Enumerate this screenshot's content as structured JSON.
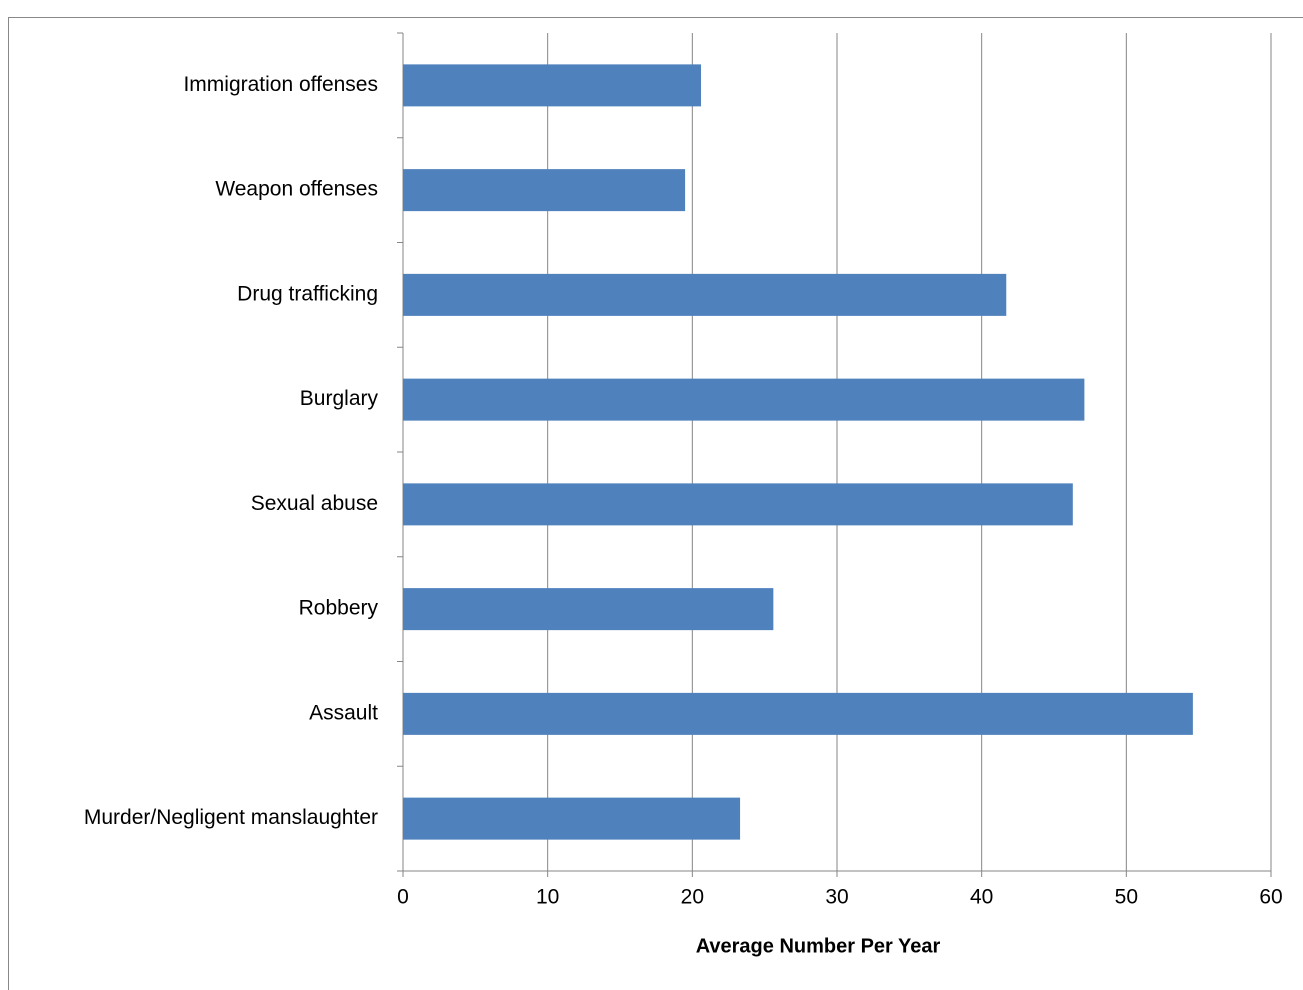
{
  "chart_data": {
    "type": "bar",
    "orientation": "horizontal",
    "x_label": "Average Number Per Year",
    "categories": [
      "Immigration offenses",
      "Weapon offenses",
      "Drug trafficking",
      "Burglary",
      "Sexual abuse",
      "Robbery",
      "Assault",
      "Murder/Negligent manslaughter"
    ],
    "values": [
      20.6,
      19.5,
      41.7,
      47.1,
      46.3,
      25.6,
      54.6,
      23.3
    ],
    "color": "#4f81bd",
    "xlim": [
      0,
      60
    ],
    "xticks": [
      0,
      10,
      20,
      30,
      40,
      50,
      60
    ],
    "grid": true
  }
}
